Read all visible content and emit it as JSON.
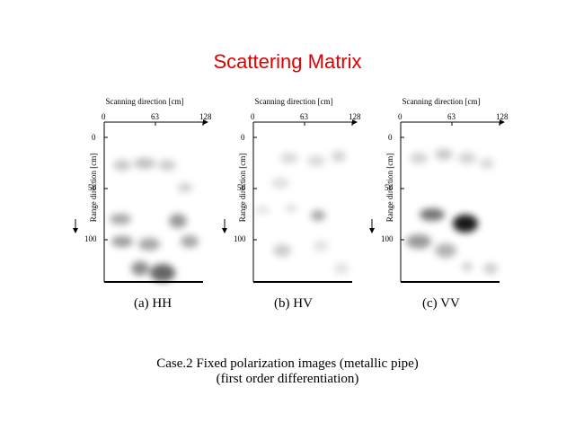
{
  "title": "Scattering Matrix",
  "axes": {
    "scan_label": "Scanning direction [cm]",
    "range_label": "Range direction [cm]",
    "x_ticks": [
      "0",
      "63",
      "128"
    ],
    "y_ticks": [
      "0",
      "50",
      "100"
    ]
  },
  "panels": [
    {
      "caption": "(a)  HH"
    },
    {
      "caption": "(b)  HV"
    },
    {
      "caption": "(c)  VV"
    }
  ],
  "footer": {
    "line1": "Case.2  Fixed polarization images (metallic pipe)",
    "line2": "(first order differentiation)"
  },
  "colors": {
    "title": "#e00000",
    "axis": "#000000",
    "blob": "#000000"
  }
}
